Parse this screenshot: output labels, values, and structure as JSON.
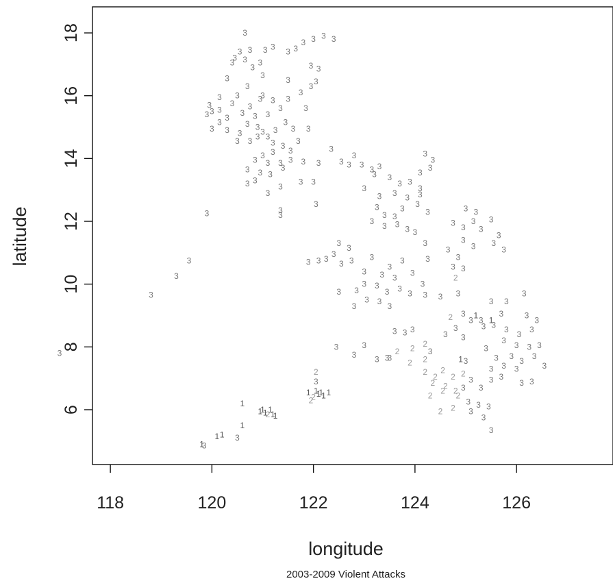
{
  "chart_data": {
    "type": "scatter",
    "title": "",
    "caption": "2003-2009 Violent Attacks",
    "xlabel": "longitude",
    "ylabel": "latitude",
    "xlim": [
      116.6,
      126.8
    ],
    "ylim": [
      4.5,
      18.5
    ],
    "xticks": [
      118,
      120,
      122,
      124,
      126
    ],
    "yticks": [
      6,
      8,
      10,
      12,
      14,
      16,
      18
    ],
    "grid": false,
    "marker": "category digit",
    "colors": {
      "1": "#555555",
      "2": "#9a9a9a",
      "3": "#777777",
      "4": "#c8c8c8"
    },
    "points": [
      [
        117.0,
        7.8,
        3
      ],
      [
        118.8,
        9.65,
        3
      ],
      [
        119.3,
        10.25,
        3
      ],
      [
        119.55,
        10.75,
        3
      ],
      [
        119.9,
        12.25,
        3
      ],
      [
        119.8,
        4.9,
        1
      ],
      [
        119.85,
        4.85,
        3
      ],
      [
        120.1,
        5.15,
        1
      ],
      [
        120.2,
        5.2,
        1
      ],
      [
        120.5,
        5.1,
        3
      ],
      [
        120.6,
        5.5,
        1
      ],
      [
        120.6,
        6.2,
        1
      ],
      [
        120.95,
        5.95,
        1
      ],
      [
        121.0,
        6.0,
        1
      ],
      [
        121.05,
        5.9,
        1
      ],
      [
        121.1,
        5.85,
        2
      ],
      [
        121.15,
        6.0,
        1
      ],
      [
        121.2,
        5.85,
        1
      ],
      [
        121.25,
        5.8,
        1
      ],
      [
        121.9,
        6.55,
        1
      ],
      [
        122.0,
        6.4,
        2
      ],
      [
        122.05,
        6.6,
        1
      ],
      [
        122.1,
        6.5,
        1
      ],
      [
        122.15,
        6.55,
        1
      ],
      [
        122.2,
        6.45,
        1
      ],
      [
        122.3,
        6.55,
        1
      ],
      [
        122.05,
        6.9,
        3
      ],
      [
        122.05,
        7.2,
        2
      ],
      [
        121.95,
        6.3,
        2
      ],
      [
        120.65,
        18.0,
        3
      ],
      [
        121.2,
        17.55,
        3
      ],
      [
        121.5,
        17.4,
        3
      ],
      [
        121.65,
        17.5,
        3
      ],
      [
        121.8,
        17.7,
        3
      ],
      [
        122.0,
        17.8,
        3
      ],
      [
        122.2,
        17.9,
        3
      ],
      [
        122.4,
        17.8,
        3
      ],
      [
        120.45,
        17.2,
        3
      ],
      [
        120.55,
        17.4,
        3
      ],
      [
        120.75,
        17.45,
        3
      ],
      [
        121.05,
        17.45,
        3
      ],
      [
        120.95,
        17.05,
        3
      ],
      [
        120.65,
        17.15,
        3
      ],
      [
        120.8,
        16.9,
        3
      ],
      [
        120.4,
        17.05,
        3
      ],
      [
        121.0,
        16.65,
        3
      ],
      [
        121.95,
        16.95,
        3
      ],
      [
        122.1,
        16.85,
        3
      ],
      [
        121.95,
        16.3,
        3
      ],
      [
        122.05,
        16.45,
        3
      ],
      [
        121.5,
        16.5,
        3
      ],
      [
        120.3,
        16.55,
        3
      ],
      [
        120.7,
        16.3,
        3
      ],
      [
        120.5,
        16.0,
        3
      ],
      [
        121.0,
        16.0,
        3
      ],
      [
        120.15,
        15.95,
        3
      ],
      [
        120.4,
        15.75,
        3
      ],
      [
        120.75,
        15.65,
        3
      ],
      [
        120.95,
        15.9,
        3
      ],
      [
        121.2,
        15.85,
        3
      ],
      [
        121.5,
        15.9,
        3
      ],
      [
        121.75,
        16.1,
        3
      ],
      [
        121.85,
        15.6,
        3
      ],
      [
        121.35,
        15.6,
        3
      ],
      [
        121.1,
        15.4,
        3
      ],
      [
        120.85,
        15.35,
        3
      ],
      [
        120.6,
        15.45,
        3
      ],
      [
        120.3,
        15.3,
        3
      ],
      [
        119.95,
        15.7,
        3
      ],
      [
        120.0,
        15.5,
        3
      ],
      [
        120.15,
        15.55,
        3
      ],
      [
        119.9,
        15.4,
        3
      ],
      [
        120.15,
        15.15,
        3
      ],
      [
        120.0,
        14.95,
        3
      ],
      [
        120.3,
        14.9,
        3
      ],
      [
        120.55,
        14.8,
        3
      ],
      [
        120.7,
        15.1,
        3
      ],
      [
        120.9,
        15.0,
        3
      ],
      [
        121.0,
        14.85,
        3
      ],
      [
        121.25,
        14.9,
        3
      ],
      [
        121.45,
        15.15,
        3
      ],
      [
        121.6,
        14.95,
        3
      ],
      [
        121.9,
        14.95,
        3
      ],
      [
        121.1,
        14.7,
        3
      ],
      [
        121.2,
        14.5,
        3
      ],
      [
        120.9,
        14.7,
        3
      ],
      [
        120.75,
        14.55,
        3
      ],
      [
        120.5,
        14.55,
        3
      ],
      [
        121.4,
        14.4,
        3
      ],
      [
        121.55,
        14.25,
        3
      ],
      [
        121.7,
        14.55,
        3
      ],
      [
        121.2,
        14.2,
        3
      ],
      [
        121.0,
        14.1,
        3
      ],
      [
        120.85,
        13.95,
        3
      ],
      [
        121.1,
        13.85,
        3
      ],
      [
        121.35,
        13.85,
        3
      ],
      [
        121.55,
        13.95,
        3
      ],
      [
        121.8,
        13.9,
        3
      ],
      [
        122.1,
        13.85,
        3
      ],
      [
        120.7,
        13.65,
        3
      ],
      [
        120.95,
        13.55,
        3
      ],
      [
        121.15,
        13.5,
        3
      ],
      [
        121.4,
        13.7,
        3
      ],
      [
        120.7,
        13.2,
        3
      ],
      [
        120.85,
        13.3,
        3
      ],
      [
        121.1,
        12.9,
        3
      ],
      [
        121.35,
        13.1,
        3
      ],
      [
        121.75,
        13.25,
        3
      ],
      [
        122.0,
        13.25,
        3
      ],
      [
        121.35,
        12.35,
        3
      ],
      [
        121.35,
        12.2,
        3
      ],
      [
        122.05,
        12.55,
        3
      ],
      [
        122.35,
        14.3,
        3
      ],
      [
        122.55,
        13.9,
        3
      ],
      [
        122.8,
        14.1,
        3
      ],
      [
        122.95,
        13.8,
        3
      ],
      [
        123.15,
        13.65,
        3
      ],
      [
        123.3,
        13.75,
        3
      ],
      [
        123.5,
        13.4,
        3
      ],
      [
        123.7,
        13.2,
        3
      ],
      [
        123.9,
        13.25,
        3
      ],
      [
        124.1,
        13.05,
        3
      ],
      [
        123.2,
        13.5,
        3
      ],
      [
        122.7,
        13.8,
        3
      ],
      [
        123.0,
        13.05,
        3
      ],
      [
        123.3,
        12.8,
        3
      ],
      [
        123.6,
        12.9,
        3
      ],
      [
        123.85,
        12.75,
        3
      ],
      [
        124.05,
        12.55,
        3
      ],
      [
        124.1,
        12.85,
        3
      ],
      [
        124.25,
        12.3,
        3
      ],
      [
        124.2,
        14.15,
        3
      ],
      [
        124.35,
        13.95,
        3
      ],
      [
        124.1,
        13.55,
        3
      ],
      [
        124.3,
        13.7,
        3
      ],
      [
        123.25,
        12.45,
        3
      ],
      [
        123.4,
        12.2,
        3
      ],
      [
        123.6,
        12.15,
        3
      ],
      [
        123.75,
        12.4,
        3
      ],
      [
        123.15,
        12.0,
        3
      ],
      [
        123.4,
        11.85,
        3
      ],
      [
        123.65,
        11.9,
        3
      ],
      [
        123.85,
        11.75,
        3
      ],
      [
        124.0,
        11.65,
        3
      ],
      [
        124.2,
        11.3,
        3
      ],
      [
        124.75,
        11.95,
        3
      ],
      [
        124.95,
        11.8,
        3
      ],
      [
        125.15,
        12.0,
        3
      ],
      [
        125.3,
        11.75,
        3
      ],
      [
        125.0,
        12.4,
        3
      ],
      [
        125.2,
        12.3,
        3
      ],
      [
        125.5,
        12.05,
        3
      ],
      [
        125.65,
        11.55,
        3
      ],
      [
        124.95,
        11.4,
        3
      ],
      [
        125.15,
        11.2,
        3
      ],
      [
        125.55,
        11.3,
        3
      ],
      [
        125.75,
        11.1,
        3
      ],
      [
        124.65,
        11.1,
        3
      ],
      [
        124.85,
        10.85,
        3
      ],
      [
        124.95,
        10.5,
        3
      ],
      [
        124.25,
        10.8,
        3
      ],
      [
        123.75,
        10.75,
        3
      ],
      [
        123.5,
        10.55,
        3
      ],
      [
        123.15,
        10.85,
        3
      ],
      [
        122.5,
        11.3,
        3
      ],
      [
        122.7,
        11.15,
        3
      ],
      [
        122.4,
        10.95,
        3
      ],
      [
        122.55,
        10.65,
        3
      ],
      [
        122.75,
        10.75,
        3
      ],
      [
        122.1,
        10.75,
        3
      ],
      [
        122.25,
        10.8,
        3
      ],
      [
        121.9,
        10.7,
        3
      ],
      [
        123.0,
        10.4,
        3
      ],
      [
        123.35,
        10.3,
        3
      ],
      [
        123.6,
        10.2,
        3
      ],
      [
        123.95,
        10.35,
        3
      ],
      [
        124.15,
        10.0,
        3
      ],
      [
        123.0,
        10.0,
        3
      ],
      [
        123.25,
        9.95,
        3
      ],
      [
        123.45,
        9.75,
        3
      ],
      [
        123.7,
        9.85,
        3
      ],
      [
        123.9,
        9.7,
        3
      ],
      [
        124.2,
        9.65,
        3
      ],
      [
        124.5,
        9.6,
        3
      ],
      [
        124.85,
        9.7,
        3
      ],
      [
        122.85,
        9.8,
        3
      ],
      [
        123.05,
        9.5,
        3
      ],
      [
        123.3,
        9.45,
        3
      ],
      [
        123.5,
        9.3,
        3
      ],
      [
        122.5,
        9.75,
        3
      ],
      [
        122.8,
        9.3,
        3
      ],
      [
        123.6,
        8.5,
        3
      ],
      [
        123.8,
        8.45,
        3
      ],
      [
        123.95,
        8.55,
        3
      ],
      [
        122.45,
        8.0,
        3
      ],
      [
        122.8,
        7.75,
        3
      ],
      [
        123.0,
        8.05,
        3
      ],
      [
        123.25,
        7.6,
        3
      ],
      [
        123.45,
        7.65,
        3
      ],
      [
        123.65,
        7.85,
        2
      ],
      [
        123.95,
        7.95,
        2
      ],
      [
        124.2,
        8.1,
        2
      ],
      [
        124.3,
        7.85,
        3
      ],
      [
        123.9,
        7.5,
        2
      ],
      [
        124.6,
        8.4,
        3
      ],
      [
        124.8,
        8.6,
        3
      ],
      [
        124.95,
        8.3,
        3
      ],
      [
        125.1,
        8.85,
        3
      ],
      [
        125.3,
        8.85,
        3
      ],
      [
        125.5,
        8.85,
        1
      ],
      [
        125.7,
        9.05,
        3
      ],
      [
        125.5,
        9.45,
        3
      ],
      [
        125.8,
        9.45,
        3
      ],
      [
        126.15,
        9.7,
        3
      ],
      [
        125.35,
        8.65,
        3
      ],
      [
        125.55,
        8.7,
        3
      ],
      [
        125.8,
        8.55,
        3
      ],
      [
        126.05,
        8.4,
        3
      ],
      [
        126.3,
        8.55,
        3
      ],
      [
        126.2,
        9.0,
        3
      ],
      [
        126.4,
        8.85,
        3
      ],
      [
        125.75,
        8.2,
        3
      ],
      [
        126.0,
        8.05,
        3
      ],
      [
        126.25,
        8.0,
        3
      ],
      [
        126.45,
        8.05,
        3
      ],
      [
        125.4,
        7.95,
        3
      ],
      [
        125.6,
        7.65,
        3
      ],
      [
        125.9,
        7.7,
        3
      ],
      [
        126.1,
        7.55,
        3
      ],
      [
        126.35,
        7.7,
        3
      ],
      [
        126.55,
        7.4,
        3
      ],
      [
        125.5,
        7.3,
        3
      ],
      [
        125.75,
        7.4,
        3
      ],
      [
        126.0,
        7.3,
        3
      ],
      [
        124.55,
        7.25,
        2
      ],
      [
        124.75,
        7.05,
        2
      ],
      [
        124.95,
        7.15,
        2
      ],
      [
        124.4,
        7.05,
        2
      ],
      [
        124.2,
        7.2,
        2
      ],
      [
        124.35,
        6.85,
        2
      ],
      [
        124.6,
        6.75,
        2
      ],
      [
        124.8,
        6.6,
        2
      ],
      [
        124.95,
        6.7,
        3
      ],
      [
        125.1,
        6.95,
        3
      ],
      [
        125.3,
        6.7,
        3
      ],
      [
        125.5,
        6.95,
        3
      ],
      [
        125.7,
        7.05,
        3
      ],
      [
        126.1,
        6.85,
        3
      ],
      [
        126.3,
        6.9,
        3
      ],
      [
        124.3,
        6.45,
        2
      ],
      [
        124.55,
        6.6,
        2
      ],
      [
        124.85,
        6.45,
        2
      ],
      [
        125.05,
        6.25,
        3
      ],
      [
        125.25,
        6.15,
        3
      ],
      [
        125.45,
        6.1,
        3
      ],
      [
        125.1,
        5.95,
        3
      ],
      [
        125.35,
        5.75,
        3
      ],
      [
        125.5,
        5.35,
        3
      ],
      [
        124.5,
        5.95,
        2
      ],
      [
        124.75,
        6.05,
        2
      ],
      [
        124.9,
        7.6,
        1
      ],
      [
        125.0,
        7.55,
        3
      ],
      [
        124.2,
        7.6,
        2
      ],
      [
        123.5,
        7.65,
        3
      ],
      [
        124.95,
        9.05,
        3
      ],
      [
        125.2,
        9.0,
        1
      ],
      [
        124.7,
        8.95,
        2
      ],
      [
        124.8,
        10.2,
        2
      ],
      [
        124.75,
        10.55,
        3
      ]
    ]
  }
}
